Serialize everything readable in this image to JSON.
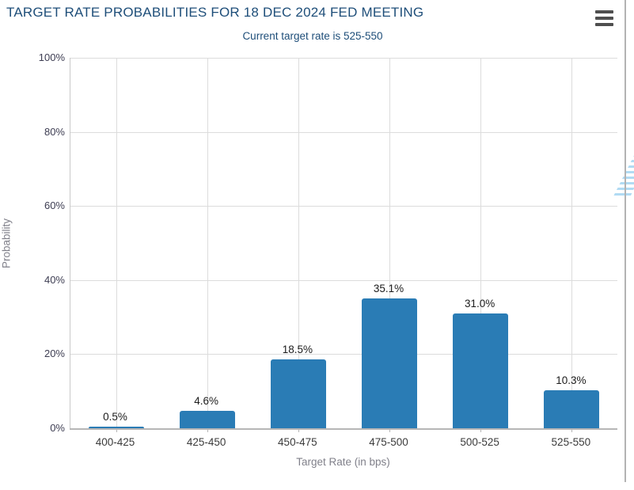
{
  "header": {
    "title": "TARGET RATE PROBABILITIES FOR 18 DEC 2024 FED MEETING",
    "subtitle": "Current target rate is 525-550"
  },
  "menu": {
    "icon": "hamburger-menu-icon"
  },
  "watermark": {
    "letter": "Q"
  },
  "colors": {
    "bar": "#2a7cb5",
    "heading_blue": "#1e4e79",
    "gridline": "#dcdcdc",
    "axis_line": "#b6b6b6",
    "watermark_gray": "#c2c2c2",
    "watermark_blue": "#a8d7f2"
  },
  "chart_data": {
    "type": "bar",
    "title": "TARGET RATE PROBABILITIES FOR 18 DEC 2024 FED MEETING",
    "subtitle": "Current target rate is 525-550",
    "categories": [
      "400-425",
      "425-450",
      "450-475",
      "475-500",
      "500-525",
      "525-550"
    ],
    "values": [
      0.5,
      4.6,
      18.5,
      35.1,
      31.0,
      10.3
    ],
    "value_labels": [
      "0.5%",
      "4.6%",
      "18.5%",
      "35.1%",
      "31.0%",
      "10.3%"
    ],
    "xlabel": "Target Rate (in bps)",
    "ylabel": "Probability",
    "ylim": [
      0,
      100
    ],
    "yticks": [
      0,
      20,
      40,
      60,
      80,
      100
    ],
    "ytick_labels": [
      "0%",
      "20%",
      "40%",
      "60%",
      "80%",
      "100%"
    ],
    "grid": true,
    "legend_position": "none",
    "bar_color": "#2a7cb5"
  }
}
